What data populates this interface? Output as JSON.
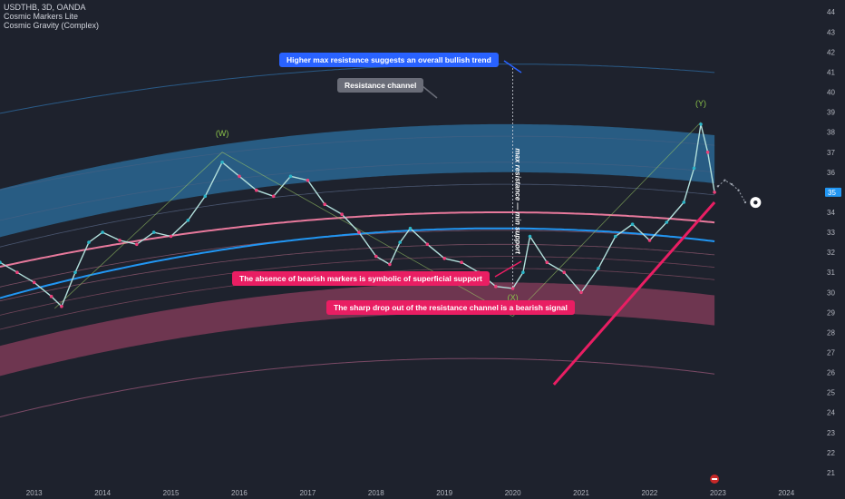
{
  "header": {
    "symbol_line": "USDTHB, 3D, OANDA",
    "indicators": [
      "Cosmic Markers Lite",
      "Cosmic Gravity (Complex)"
    ]
  },
  "price_badge": "35",
  "colors": {
    "background": "#1e222d",
    "resistance_band": "#2b6c99",
    "support_band": "#8a3d5c",
    "pink_curve": "#e8799c",
    "blue_curve": "#2196f3",
    "trendline": "#e91e63",
    "callout_blue": "#2962ff",
    "callout_gray": "#6a6d78",
    "callout_pink": "#e91e63",
    "bull_candle": "#4db6ac",
    "bear_candle": "#c27fa0",
    "bull_marker": "#2bb5c8",
    "bear_marker": "#ec407a"
  },
  "annotations": {
    "max_resistance_note": "Higher max resistance suggests an overall bullish trend",
    "resistance_channel": "Resistance channel",
    "vertical_note": "max resistance — min support",
    "bearish_markers_note": "The absence of bearish markers is symbolic of superficial support",
    "sharp_drop_note": "The sharp drop out of the resistance channel is a bearish signal"
  },
  "chart_data": {
    "type": "line",
    "title": "USDTHB, 3D, OANDA",
    "xlabel": "",
    "ylabel": "",
    "x_tick_labels": [
      "2013",
      "2014",
      "2015",
      "2016",
      "2017",
      "2018",
      "2019",
      "2020",
      "2021",
      "2022",
      "2023",
      "2024"
    ],
    "y_tick_labels": [
      21,
      22,
      23,
      24,
      25,
      26,
      27,
      28,
      29,
      30,
      31,
      32,
      33,
      34,
      35,
      36,
      37,
      38,
      39,
      40,
      41,
      42,
      43,
      44
    ],
    "xlim": [
      2012.5,
      2024.5
    ],
    "ylim": [
      20.5,
      44.6
    ],
    "y_axis_side": "right",
    "grid": false,
    "wave_labels": [
      {
        "text": "(W)",
        "x": 2015.75,
        "y": 37.8
      },
      {
        "text": "(X)",
        "x": 2020.0,
        "y": 29.6
      },
      {
        "text": "(Y)",
        "x": 2022.75,
        "y": 39.3
      }
    ],
    "series": [
      {
        "name": "USDTHB",
        "x": [
          2012.5,
          2012.75,
          2013.0,
          2013.25,
          2013.4,
          2013.6,
          2013.8,
          2014.0,
          2014.25,
          2014.5,
          2014.75,
          2015.0,
          2015.25,
          2015.5,
          2015.75,
          2016.0,
          2016.25,
          2016.5,
          2016.75,
          2017.0,
          2017.25,
          2017.5,
          2017.75,
          2018.0,
          2018.2,
          2018.35,
          2018.5,
          2018.75,
          2019.0,
          2019.25,
          2019.5,
          2019.75,
          2020.0,
          2020.15,
          2020.25,
          2020.5,
          2020.75,
          2021.0,
          2021.25,
          2021.5,
          2021.75,
          2022.0,
          2022.25,
          2022.5,
          2022.65,
          2022.75,
          2022.85,
          2022.95
        ],
        "y": [
          31.5,
          31.0,
          30.5,
          29.8,
          29.3,
          31.0,
          32.5,
          33.0,
          32.6,
          32.4,
          33.0,
          32.8,
          33.6,
          34.8,
          36.5,
          35.8,
          35.1,
          34.8,
          35.8,
          35.6,
          34.4,
          33.9,
          33.0,
          31.8,
          31.4,
          32.5,
          33.2,
          32.4,
          31.7,
          31.5,
          31.0,
          30.3,
          30.2,
          31.0,
          32.8,
          31.5,
          31.0,
          30.0,
          31.2,
          32.8,
          33.4,
          32.6,
          33.5,
          34.5,
          36.2,
          38.4,
          37.0,
          35.0
        ]
      },
      {
        "name": "Projection",
        "x": [
          2023.0,
          2023.1,
          2023.2,
          2023.3,
          2023.4
        ],
        "y": [
          35.3,
          35.6,
          35.4,
          35.1,
          34.5
        ]
      }
    ]
  }
}
